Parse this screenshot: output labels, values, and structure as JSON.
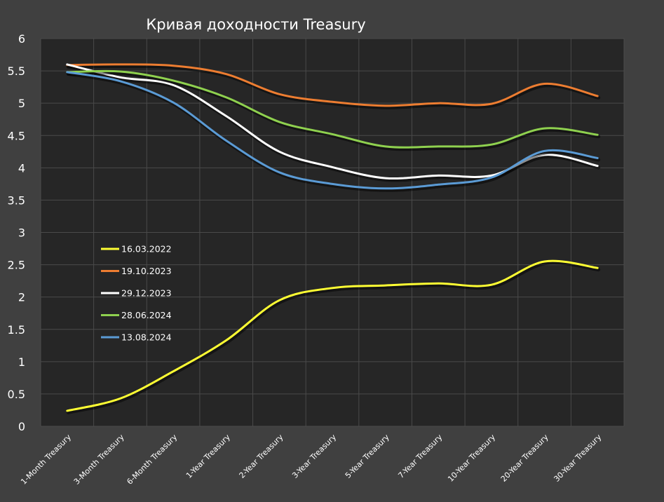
{
  "chart_data": {
    "type": "line",
    "title": "Кривая доходности Treasury",
    "xlabel": "",
    "ylabel": "",
    "ylim": [
      0,
      6
    ],
    "yticks": [
      0,
      0.5,
      1,
      1.5,
      2,
      2.5,
      3,
      3.5,
      4,
      4.5,
      5,
      5.5,
      6
    ],
    "ytick_labels": [
      "0",
      "0.5",
      "1",
      "1.5",
      "2",
      "2.5",
      "3",
      "3.5",
      "4",
      "4.5",
      "5",
      "5.5",
      "6"
    ],
    "grid": true,
    "smooth": true,
    "legend_position": "inside-left",
    "categories": [
      "1-Month Treasury",
      "3-Month Treasury",
      "6-Month Treasury",
      "1-Year Treasury",
      "2-Year Treasury",
      "3-Year Treasury",
      "5-Year Treasury",
      "7-Year Treasury",
      "10-Year Treasury",
      "20-Year Treasury",
      "30-Year Treasury"
    ],
    "series": [
      {
        "name": "16.03.2022",
        "color": "#ffff33",
        "values": [
          0.24,
          0.43,
          0.85,
          1.33,
          1.95,
          2.14,
          2.18,
          2.21,
          2.19,
          2.55,
          2.45
        ]
      },
      {
        "name": "19.10.2023",
        "color": "#ed7d31",
        "values": [
          5.59,
          5.6,
          5.58,
          5.45,
          5.14,
          5.02,
          4.96,
          5.0,
          4.99,
          5.3,
          5.11
        ]
      },
      {
        "name": "29.12.2023",
        "color": "#ffffff",
        "values": [
          5.6,
          5.4,
          5.28,
          4.8,
          4.25,
          4.01,
          3.84,
          3.88,
          3.88,
          4.2,
          4.03
        ]
      },
      {
        "name": "28.06.2024",
        "color": "#8fd14f",
        "values": [
          5.48,
          5.49,
          5.35,
          5.09,
          4.71,
          4.52,
          4.33,
          4.33,
          4.36,
          4.61,
          4.51
        ]
      },
      {
        "name": "13.08.2024",
        "color": "#5b9bd5",
        "values": [
          5.48,
          5.34,
          5.01,
          4.42,
          3.93,
          3.75,
          3.68,
          3.74,
          3.85,
          4.26,
          4.15
        ]
      }
    ]
  }
}
